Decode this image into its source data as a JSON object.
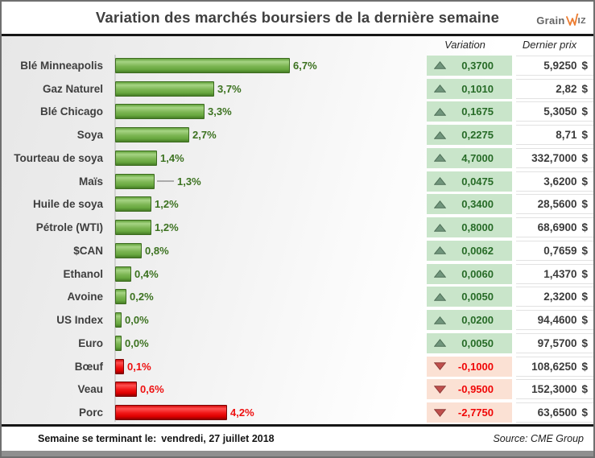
{
  "title": "Variation des marchés boursiers de la dernière semaine",
  "logo": {
    "brand_left": "Grain",
    "brand_right": "iz"
  },
  "headers": {
    "variation": "Variation",
    "price": "Dernier prix"
  },
  "currency": "$",
  "footer": {
    "label": "Semaine se terminant le:",
    "date": "vendredi, 27 juillet 2018",
    "source": "Source: CME Group"
  },
  "colors": {
    "positive_bar": "#5f9c3a",
    "negative_bar": "#e60000",
    "positive_cell_bg": "#c9e5ca",
    "negative_cell_bg": "#fbe1d4",
    "positive_text": "#276b27",
    "negative_text": "#f00606",
    "logo_accent": "#ed7d31"
  },
  "chart_data": {
    "type": "bar",
    "orientation": "horizontal",
    "title": "Variation des marchés boursiers de la dernière semaine",
    "categories": [
      "Blé Minneapolis",
      "Gaz Naturel",
      "Blé Chicago",
      "Soya",
      "Tourteau de soya",
      "Maïs",
      "Huile de soya",
      "Pétrole (WTI)",
      "$CAN",
      "Ethanol",
      "Avoine",
      "US Index",
      "Euro",
      "Bœuf",
      "Veau",
      "Porc"
    ],
    "values_percent": [
      6.7,
      3.7,
      3.3,
      2.7,
      1.4,
      1.3,
      1.2,
      1.2,
      0.8,
      0.4,
      0.2,
      0.0,
      0.0,
      -0.1,
      -0.6,
      -4.2
    ],
    "series": [
      {
        "name": "Variation",
        "values": [
          0.37,
          0.101,
          0.1675,
          0.2275,
          4.7,
          0.0475,
          0.34,
          0.8,
          0.0062,
          0.006,
          0.005,
          0.02,
          0.005,
          -0.1,
          -0.95,
          -2.775
        ]
      },
      {
        "name": "Dernier prix ($)",
        "values": [
          5.925,
          2.82,
          5.305,
          8.71,
          332.7,
          3.62,
          28.56,
          68.69,
          0.7659,
          1.437,
          2.32,
          94.46,
          97.57,
          108.625,
          152.3,
          63.65
        ]
      }
    ],
    "legend": "none",
    "grid": "off",
    "rows": [
      {
        "label": "Blé Minneapolis",
        "pct": 6.7,
        "pct_label": "6,7%",
        "direction": "up",
        "variation": "0,3700",
        "price": "5,9250"
      },
      {
        "label": "Gaz Naturel",
        "pct": 3.7,
        "pct_label": "3,7%",
        "direction": "up",
        "variation": "0,1010",
        "price": "2,82"
      },
      {
        "label": "Blé Chicago",
        "pct": 3.3,
        "pct_label": "3,3%",
        "direction": "up",
        "variation": "0,1675",
        "price": "5,3050"
      },
      {
        "label": "Soya",
        "pct": 2.7,
        "pct_label": "2,7%",
        "direction": "up",
        "variation": "0,2275",
        "price": "8,71"
      },
      {
        "label": "Tourteau de soya",
        "pct": 1.4,
        "pct_label": "1,4%",
        "direction": "up",
        "variation": "4,7000",
        "price": "332,7000"
      },
      {
        "label": "Maïs",
        "pct": 1.3,
        "pct_label": "1,3%",
        "direction": "up",
        "variation": "0,0475",
        "price": "3,6200",
        "leader": true
      },
      {
        "label": "Huile de soya",
        "pct": 1.2,
        "pct_label": "1,2%",
        "direction": "up",
        "variation": "0,3400",
        "price": "28,5600"
      },
      {
        "label": "Pétrole (WTI)",
        "pct": 1.2,
        "pct_label": "1,2%",
        "direction": "up",
        "variation": "0,8000",
        "price": "68,6900"
      },
      {
        "label": "$CAN",
        "pct": 0.8,
        "pct_label": "0,8%",
        "direction": "up",
        "variation": "0,0062",
        "price": "0,7659"
      },
      {
        "label": "Ethanol",
        "pct": 0.4,
        "pct_label": "0,4%",
        "direction": "up",
        "variation": "0,0060",
        "price": "1,4370"
      },
      {
        "label": "Avoine",
        "pct": 0.2,
        "pct_label": "0,2%",
        "direction": "up",
        "variation": "0,0050",
        "price": "2,3200"
      },
      {
        "label": "US Index",
        "pct": 0.0,
        "pct_label": "0,0%",
        "direction": "up",
        "variation": "0,0200",
        "price": "94,4600"
      },
      {
        "label": "Euro",
        "pct": 0.0,
        "pct_label": "0,0%",
        "direction": "up",
        "variation": "0,0050",
        "price": "97,5700"
      },
      {
        "label": "Bœuf",
        "pct": 0.1,
        "pct_label": "0,1%",
        "direction": "down",
        "variation": "-0,1000",
        "price": "108,6250"
      },
      {
        "label": "Veau",
        "pct": 0.6,
        "pct_label": "0,6%",
        "direction": "down",
        "variation": "-0,9500",
        "price": "152,3000"
      },
      {
        "label": "Porc",
        "pct": 4.2,
        "pct_label": "4,2%",
        "direction": "down",
        "variation": "-2,7750",
        "price": "63,6500"
      }
    ]
  }
}
